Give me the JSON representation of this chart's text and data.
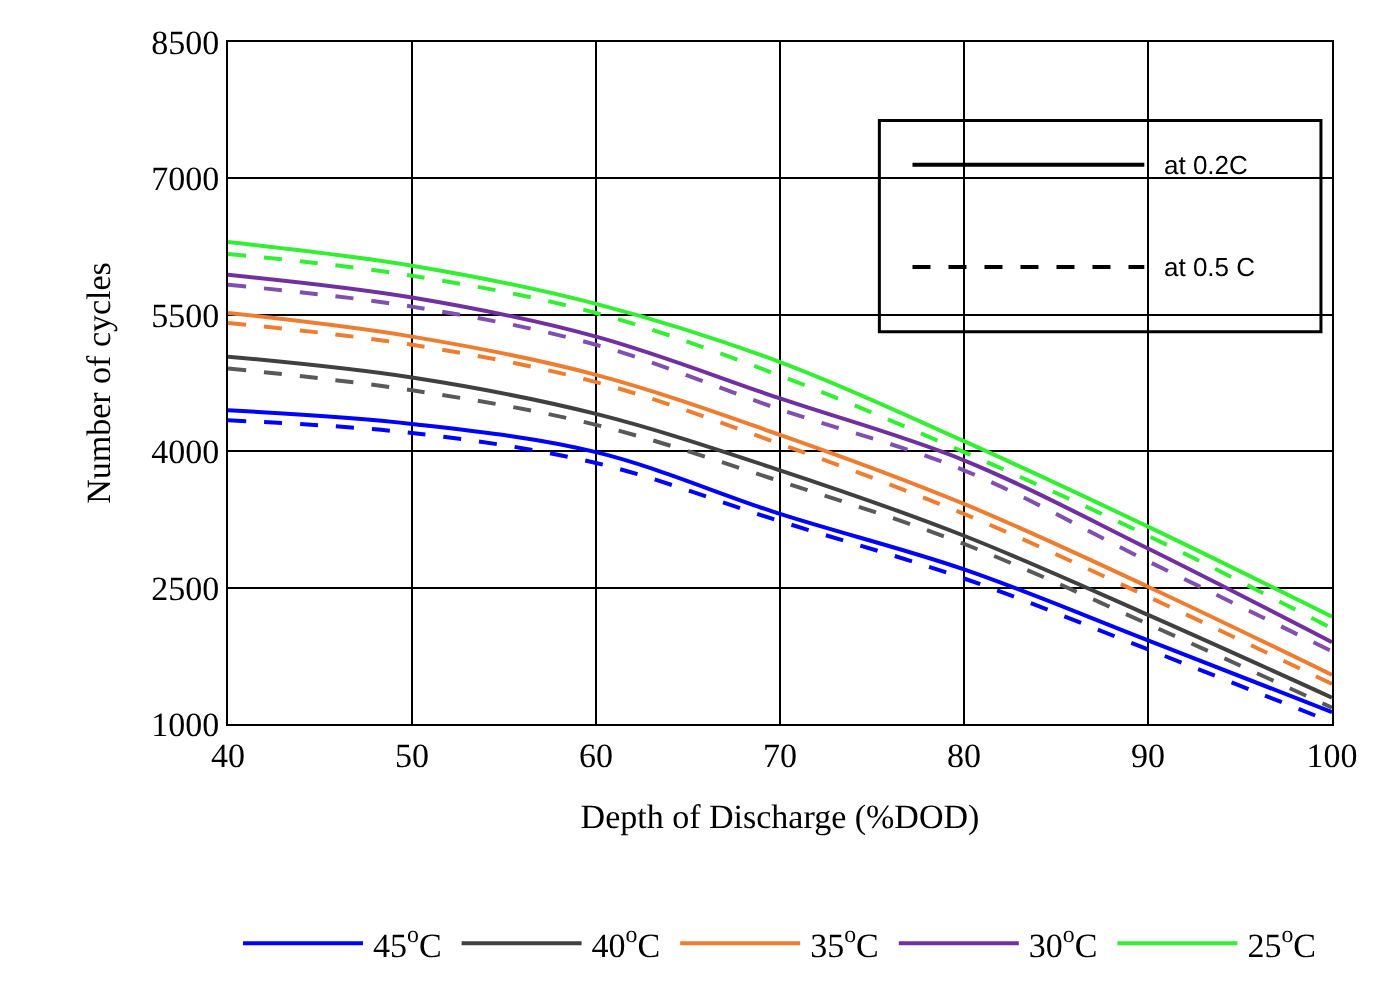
{
  "chart_data": {
    "type": "line",
    "xlabel": "Depth of Discharge (%DOD)",
    "ylabel": "Number of cycles",
    "x": [
      40,
      50,
      60,
      70,
      80,
      90,
      100
    ],
    "series": [
      {
        "name": "45$^{o}$C",
        "color": "#0000ff",
        "line_style": "solid",
        "values": [
          4450,
          4300,
          3990,
          3310,
          2700,
          1920,
          1130
        ]
      },
      {
        "color": "#0000ff",
        "line_style": "dashed",
        "values": [
          4340,
          4200,
          3870,
          3230,
          2600,
          1820,
          1020
        ]
      },
      {
        "name": "40$^{o}$C",
        "color": "#404040",
        "line_style": "solid",
        "values": [
          5040,
          4810,
          4410,
          3790,
          3070,
          2200,
          1290
        ]
      },
      {
        "color": "#595959",
        "line_style": "dashed",
        "values": [
          4910,
          4670,
          4290,
          3670,
          2980,
          2100,
          1180
        ]
      },
      {
        "name": "35$^{o}$C",
        "color": "#ed7d31",
        "line_style": "solid",
        "values": [
          5520,
          5260,
          4840,
          4180,
          3420,
          2510,
          1540
        ]
      },
      {
        "color": "#ed7d31",
        "line_style": "dashed",
        "values": [
          5410,
          5170,
          4760,
          4080,
          3310,
          2400,
          1440
        ]
      },
      {
        "name": "30$^{o}$C",
        "color": "#7030a0",
        "line_style": "solid",
        "values": [
          5940,
          5690,
          5260,
          4580,
          3900,
          2930,
          1900
        ]
      },
      {
        "color": "#7f50b0",
        "line_style": "dashed",
        "values": [
          5830,
          5590,
          5170,
          4460,
          3790,
          2790,
          1800
        ]
      },
      {
        "name": "25$^{o}$C",
        "color": "#33ee33",
        "line_style": "solid",
        "values": [
          6300,
          6040,
          5620,
          4980,
          4110,
          3170,
          2180
        ]
      },
      {
        "color": "#33ee33",
        "line_style": "dashed",
        "values": [
          6170,
          5930,
          5520,
          4830,
          3990,
          3070,
          2050
        ]
      }
    ],
    "annotations": [
      "at 0.2C",
      "at 0.5 C"
    ],
    "xlim": [
      40,
      100
    ],
    "xticks": [
      40,
      50,
      60,
      70,
      80,
      90,
      100
    ],
    "ylim": [
      1000,
      8500
    ],
    "yticks": [
      1000,
      2500,
      4000,
      5500,
      7000,
      8500
    ],
    "grid": true,
    "legend": "bottom",
    "marker": "none"
  }
}
